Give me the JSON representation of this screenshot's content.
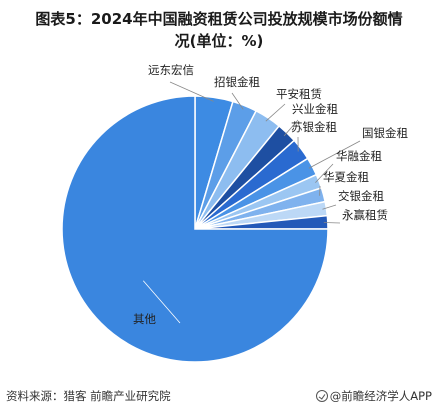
{
  "title_lines": [
    "图表5：2024年中国融资租赁公司投放规模市场份额情",
    "况(单位：%)"
  ],
  "footer": {
    "source": "资料来源：猎客 前瞻产业研究院",
    "brand": "@前瞻经济学人APP"
  },
  "chart_data": {
    "type": "pie",
    "title": "图表5：2024年中国融资租赁公司投放规模市场份额情况(单位：%)",
    "unit": "%",
    "start": "12 o'clock, clockwise",
    "slices": [
      {
        "label": "远东宏信",
        "value": 4.6,
        "color": "#3d8be3"
      },
      {
        "label": "招银金租",
        "value": 3.0,
        "color": "#5c9ee8"
      },
      {
        "label": "平安租赁",
        "value": 3.3,
        "color": "#8dbdf0"
      },
      {
        "label": "兴业金租",
        "value": 2.5,
        "color": "#1e4fa2"
      },
      {
        "label": "苏银金租",
        "value": 2.7,
        "color": "#2a6ad0"
      },
      {
        "label": "国银金租",
        "value": 2.2,
        "color": "#4a93e6"
      },
      {
        "label": "华融金租",
        "value": 1.7,
        "color": "#9bc6f2"
      },
      {
        "label": "华夏金租",
        "value": 1.7,
        "color": "#7fb2ee"
      },
      {
        "label": "交银金租",
        "value": 1.7,
        "color": "#bcd8f6"
      },
      {
        "label": "永赢租赁",
        "value": 1.6,
        "color": "#2359b8"
      },
      {
        "label": "其他",
        "value": 75.0,
        "color": "#3a86df"
      }
    ]
  }
}
